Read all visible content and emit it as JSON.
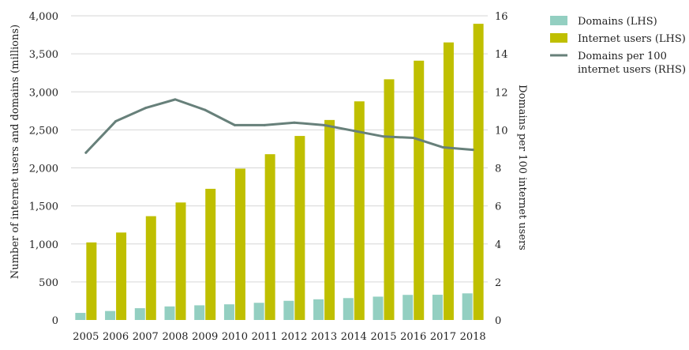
{
  "chart_data": {
    "type": "bar",
    "categories": [
      "2005",
      "2006",
      "2007",
      "2008",
      "2009",
      "2010",
      "2011",
      "2012",
      "2013",
      "2014",
      "2015",
      "2016",
      "2017",
      "2018"
    ],
    "series": [
      {
        "name": "Domains (LHS)",
        "type": "bar",
        "axis": "left",
        "color": "#93cfc1",
        "values": [
          93,
          118,
          155,
          178,
          193,
          206,
          226,
          252,
          272,
          288,
          307,
          330,
          332,
          350
        ]
      },
      {
        "name": "Internet users (LHS)",
        "type": "bar",
        "axis": "left",
        "color": "#bfbf00",
        "values": [
          1020,
          1150,
          1365,
          1545,
          1725,
          1990,
          2180,
          2420,
          2630,
          2875,
          3165,
          3410,
          3650,
          3895
        ]
      },
      {
        "name": "Domains per 100 internet users (RHS)",
        "type": "line",
        "axis": "right",
        "color": "#67807a",
        "values": [
          8.8,
          10.45,
          11.15,
          11.6,
          11.05,
          10.25,
          10.25,
          10.38,
          10.25,
          9.95,
          9.65,
          9.58,
          9.08,
          8.95
        ]
      }
    ],
    "y_left": {
      "label": "Number of internet users and domains (millions)",
      "lim": [
        0,
        4000
      ],
      "ticks": [
        0,
        500,
        1000,
        1500,
        2000,
        2500,
        3000,
        3500,
        4000
      ],
      "tick_labels": [
        "0",
        "500",
        "1,000",
        "1,500",
        "2,000",
        "2,500",
        "3,000",
        "3,500",
        "4,000"
      ]
    },
    "y_right": {
      "label": "Domains per 100 internet users",
      "lim": [
        0,
        16
      ],
      "ticks": [
        0,
        2,
        4,
        6,
        8,
        10,
        12,
        14,
        16
      ],
      "tick_labels": [
        "0",
        "2",
        "4",
        "6",
        "8",
        "10",
        "12",
        "14",
        "16"
      ]
    },
    "grid": true,
    "legend_position": "top-right"
  },
  "legend": {
    "items": [
      {
        "label": "Domains (LHS)",
        "kind": "box",
        "color": "#93cfc1"
      },
      {
        "label": "Internet users (LHS)",
        "kind": "box",
        "color": "#bfbf00"
      },
      {
        "label_lines": [
          "Domains per 100",
          "internet users (RHS)"
        ],
        "kind": "line",
        "color": "#67807a"
      }
    ]
  }
}
